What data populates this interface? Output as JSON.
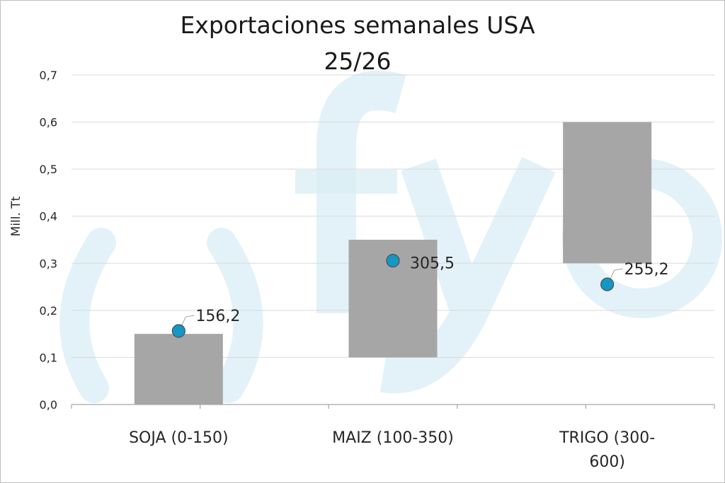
{
  "chart_data": {
    "type": "bar",
    "subtype": "floating-range-with-markers",
    "title": "Exportaciones semanales USA",
    "subtitle": "25/26",
    "ylabel": "Mill. Tt",
    "xlabel": "",
    "ylim": [
      0,
      0.7
    ],
    "yticks": [
      "0,0",
      "0,1",
      "0,2",
      "0,3",
      "0,4",
      "0,5",
      "0,6",
      "0,7"
    ],
    "grid": true,
    "categories": [
      [
        "SOJA (0-150)"
      ],
      [
        "MAIZ (100-350)"
      ],
      [
        "TRIGO (300-",
        "600)"
      ]
    ],
    "ranges": [
      [
        0,
        0.15
      ],
      [
        0.1,
        0.35
      ],
      [
        0.3,
        0.6
      ]
    ],
    "values": [
      0.1562,
      0.3055,
      0.2552
    ],
    "value_labels": [
      "156,2",
      "305,5",
      "255,2"
    ],
    "bar_color": "#a6a6a6",
    "marker_color": "#1597c4",
    "watermark": "fyo"
  }
}
